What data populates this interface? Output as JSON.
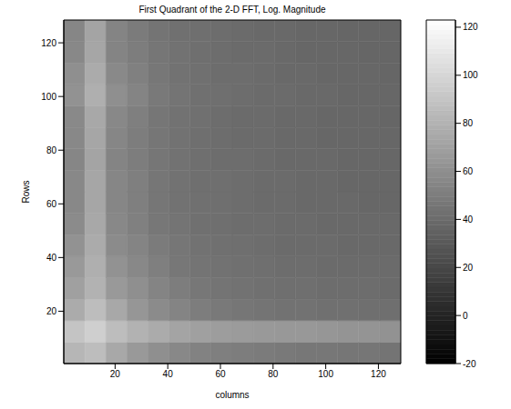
{
  "chart_data": {
    "type": "heatmap",
    "title": "First Quadrant of the 2-D FFT, Log. Magnitude",
    "xlabel": "columns",
    "ylabel": "Rows",
    "xlim": [
      0.5,
      128.5
    ],
    "ylim": [
      0.5,
      128.5
    ],
    "xticks": [
      20,
      40,
      60,
      80,
      100,
      120
    ],
    "yticks": [
      20,
      40,
      60,
      80,
      100,
      120
    ],
    "x_edges": [
      0.5,
      8.5,
      16.5,
      24.5,
      32.5,
      40.5,
      48.5,
      56.5,
      64.5,
      72.5,
      80.5,
      88.5,
      96.5,
      104.5,
      112.5,
      120.5,
      128.5
    ],
    "y_edges": [
      0.5,
      8.5,
      16.5,
      24.5,
      32.5,
      40.5,
      48.5,
      56.5,
      64.5,
      72.5,
      80.5,
      88.5,
      96.5,
      104.5,
      112.5,
      120.5,
      128.5
    ],
    "cells": [
      [
        82,
        86,
        74,
        66,
        60,
        56,
        53,
        51,
        50,
        49,
        48,
        47,
        47,
        46,
        46,
        45
      ],
      [
        90,
        96,
        86,
        80,
        76,
        72,
        70,
        68,
        67,
        66,
        65,
        65,
        64,
        63,
        63,
        62
      ],
      [
        76,
        86,
        74,
        64,
        58,
        54,
        50,
        48,
        46,
        45,
        44,
        44,
        43,
        43,
        42,
        42
      ],
      [
        70,
        80,
        66,
        60,
        54,
        50,
        47,
        45,
        44,
        43,
        42,
        42,
        41,
        41,
        41,
        40
      ],
      [
        66,
        78,
        62,
        56,
        51,
        47,
        45,
        44,
        43,
        42,
        41,
        41,
        40,
        40,
        40,
        40
      ],
      [
        62,
        76,
        58,
        54,
        49,
        46,
        44,
        43,
        42,
        41,
        40,
        40,
        40,
        39,
        39,
        39
      ],
      [
        58,
        74,
        56,
        52,
        47,
        45,
        43,
        42,
        41,
        41,
        40,
        40,
        39,
        39,
        39,
        39
      ],
      [
        56,
        73,
        55,
        51,
        46,
        44,
        43,
        42,
        41,
        40,
        40,
        39,
        39,
        39,
        38,
        38
      ],
      [
        56,
        73,
        55,
        51,
        46,
        44,
        42,
        42,
        41,
        40,
        40,
        39,
        39,
        38,
        38,
        38
      ],
      [
        55,
        72,
        54,
        50,
        46,
        44,
        42,
        41,
        41,
        40,
        39,
        39,
        39,
        38,
        38,
        38
      ],
      [
        56,
        73,
        55,
        50,
        46,
        44,
        42,
        41,
        40,
        40,
        39,
        39,
        38,
        38,
        38,
        38
      ],
      [
        57,
        74,
        56,
        51,
        46,
        44,
        43,
        41,
        40,
        40,
        39,
        39,
        38,
        38,
        38,
        37
      ],
      [
        62,
        78,
        60,
        54,
        48,
        45,
        43,
        42,
        41,
        40,
        40,
        39,
        39,
        38,
        38,
        38
      ],
      [
        60,
        76,
        57,
        52,
        47,
        44,
        43,
        41,
        41,
        40,
        39,
        39,
        38,
        38,
        38,
        37
      ],
      [
        56,
        73,
        54,
        50,
        46,
        44,
        42,
        41,
        40,
        40,
        39,
        38,
        38,
        38,
        37,
        37
      ],
      [
        55,
        72,
        54,
        49,
        45,
        43,
        42,
        41,
        40,
        39,
        39,
        38,
        38,
        37,
        37,
        37
      ]
    ],
    "colorbar": {
      "range": [
        -20,
        123
      ],
      "ticks": [
        -20,
        0,
        20,
        40,
        60,
        80,
        100,
        120
      ]
    }
  }
}
